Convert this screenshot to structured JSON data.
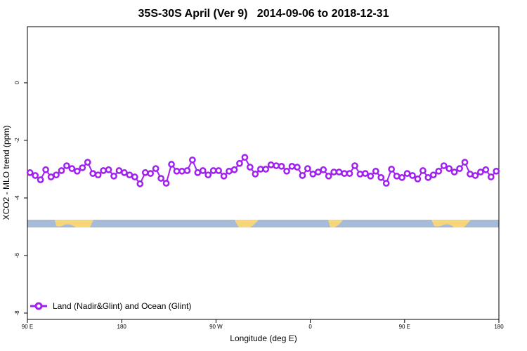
{
  "chart_data": {
    "type": "line",
    "title": "35S-30S April (Ver 9)   2014-09-06 to 2018-12-31",
    "x_label": "Longitude (deg E)",
    "y_label": "XCO2 - MLO trend (ppm)",
    "x": [
      92.5,
      97.5,
      102.5,
      107.5,
      112.5,
      117.5,
      122.5,
      127.5,
      132.5,
      137.5,
      142.5,
      147.5,
      152.5,
      157.5,
      162.5,
      167.5,
      172.5,
      177.5,
      182.5,
      187.5,
      192.5,
      197.5,
      202.5,
      207.5,
      212.5,
      217.5,
      222.5,
      227.5,
      232.5,
      237.5,
      242.5,
      247.5,
      252.5,
      257.5,
      262.5,
      267.5,
      272.5,
      277.5,
      282.5,
      287.5,
      292.5,
      297.5,
      302.5,
      307.5,
      312.5,
      317.5,
      322.5,
      327.5,
      332.5,
      337.5,
      342.5,
      347.5,
      352.5,
      357.5,
      362.5,
      367.5,
      372.5,
      377.5,
      382.5,
      387.5,
      392.5,
      397.5,
      402.5,
      407.5,
      412.5,
      417.5,
      422.5,
      427.5,
      432.5,
      437.5,
      442.5,
      447.5,
      452.5,
      457.5,
      462.5,
      467.5,
      472.5,
      477.5,
      482.5,
      487.5,
      492.5,
      497.5,
      502.5,
      507.5,
      512.5,
      517.5,
      522.5,
      527.5,
      532.5,
      537.5
    ],
    "series": [
      {
        "name": "Land (Nadir&Glint) and Ocean (Glint)",
        "color": "#a020f0",
        "values": [
          -3.12,
          -3.22,
          -3.37,
          -3.02,
          -3.27,
          -3.2,
          -3.05,
          -2.88,
          -2.98,
          -3.07,
          -2.95,
          -2.76,
          -3.15,
          -3.2,
          -3.05,
          -3.02,
          -3.24,
          -3.05,
          -3.12,
          -3.2,
          -3.27,
          -3.51,
          -3.12,
          -3.15,
          -2.98,
          -3.32,
          -3.49,
          -2.83,
          -3.07,
          -3.07,
          -3.05,
          -2.68,
          -3.12,
          -3.05,
          -3.2,
          -3.05,
          -3.05,
          -3.24,
          -3.07,
          -3.02,
          -2.8,
          -2.59,
          -2.93,
          -3.17,
          -3.0,
          -3.0,
          -2.85,
          -2.88,
          -2.9,
          -3.07,
          -2.9,
          -2.93,
          -3.22,
          -2.98,
          -3.17,
          -3.1,
          -3.02,
          -3.24,
          -3.1,
          -3.1,
          -3.15,
          -3.15,
          -2.88,
          -3.17,
          -3.15,
          -3.24,
          -3.07,
          -3.29,
          -3.49,
          -3.0,
          -3.24,
          -3.29,
          -3.15,
          -3.22,
          -3.34,
          -3.05,
          -3.29,
          -3.2,
          -3.07,
          -2.88,
          -2.98,
          -3.1,
          -2.98,
          -2.76,
          -3.17,
          -3.22,
          -3.1,
          -3.02,
          -3.27,
          -3.07
        ]
      }
    ],
    "xlim": [
      90,
      540
    ],
    "xticks": [
      {
        "value": 90,
        "label": "90 E"
      },
      180,
      {
        "value": 270,
        "label": "90 W"
      },
      {
        "value": 360,
        "label": "0"
      },
      {
        "value": 450,
        "label": "90 E"
      },
      {
        "value": 540,
        "label": "180"
      }
    ],
    "ylim": [
      -8.22,
      1.95
    ],
    "yticks": [
      0,
      -2,
      -4,
      -6,
      -8
    ]
  }
}
